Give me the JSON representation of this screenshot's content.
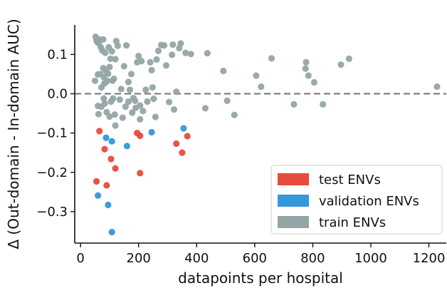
{
  "chart_data": {
    "type": "scatter",
    "xlabel": "datapoints per hospital",
    "ylabel": "Δ (Out-domain - In-domain AUC)",
    "xlim": [
      -20,
      1260
    ],
    "ylim": [
      -0.38,
      0.175
    ],
    "xticks": [
      0,
      200,
      400,
      600,
      800,
      1000,
      1200
    ],
    "xtick_labels": [
      "0",
      "200",
      "400",
      "600",
      "800",
      "1000",
      "1200"
    ],
    "yticks": [
      -0.3,
      -0.2,
      -0.1,
      0.0,
      0.1
    ],
    "ytick_labels": [
      "−0.3",
      "−0.2",
      "−0.1",
      "0.0",
      "0.1"
    ],
    "reference_line": {
      "y": 0.0,
      "style": "dashed",
      "color": "#7f7f7f"
    },
    "grid": false,
    "legend": {
      "placement": "bottom-right"
    },
    "series": [
      {
        "name": "test ENVs",
        "color": "#e74c3c",
        "points": [
          [
            55,
            -0.223
          ],
          [
            65,
            -0.095
          ],
          [
            83,
            -0.141
          ],
          [
            90,
            -0.233
          ],
          [
            105,
            -0.166
          ],
          [
            120,
            -0.19
          ],
          [
            195,
            -0.1
          ],
          [
            205,
            -0.107
          ],
          [
            205,
            -0.202
          ],
          [
            330,
            -0.127
          ],
          [
            350,
            -0.15
          ],
          [
            368,
            -0.108
          ]
        ]
      },
      {
        "name": "validation ENVs",
        "color": "#3498db",
        "points": [
          [
            60,
            -0.259
          ],
          [
            88,
            -0.112
          ],
          [
            95,
            -0.283
          ],
          [
            108,
            -0.121
          ],
          [
            108,
            -0.352
          ],
          [
            160,
            -0.133
          ],
          [
            245,
            -0.098
          ],
          [
            355,
            -0.088
          ]
        ]
      },
      {
        "name": "train ENVs",
        "color": "#95a5a6",
        "points": [
          [
            50,
            0.033
          ],
          [
            52,
            0.145
          ],
          [
            55,
            0.136
          ],
          [
            58,
            0.131
          ],
          [
            60,
            0.049
          ],
          [
            60,
            -0.031
          ],
          [
            62,
            -0.052
          ],
          [
            63,
            0.128
          ],
          [
            65,
            0.138
          ],
          [
            67,
            0.05
          ],
          [
            70,
            0.118
          ],
          [
            72,
            0.016
          ],
          [
            72,
            -0.033
          ],
          [
            75,
            0.11
          ],
          [
            78,
            0.065
          ],
          [
            78,
            0.138
          ],
          [
            80,
            0.042
          ],
          [
            80,
            -0.012
          ],
          [
            82,
            0.026
          ],
          [
            83,
            -0.025
          ],
          [
            85,
            0.104
          ],
          [
            87,
            0.058
          ],
          [
            88,
            0.03
          ],
          [
            90,
            -0.047
          ],
          [
            92,
            0.033
          ],
          [
            95,
            0.051
          ],
          [
            97,
            0.118
          ],
          [
            100,
            0.068
          ],
          [
            100,
            -0.058
          ],
          [
            103,
            0.089
          ],
          [
            105,
            -0.02
          ],
          [
            108,
            0.108
          ],
          [
            110,
            0.033
          ],
          [
            112,
            -0.012
          ],
          [
            115,
            0.038
          ],
          [
            118,
            -0.053
          ],
          [
            120,
            0.088
          ],
          [
            120,
            -0.081
          ],
          [
            123,
            0.134
          ],
          [
            128,
            0.122
          ],
          [
            135,
            -0.015
          ],
          [
            140,
            0.012
          ],
          [
            145,
            -0.061
          ],
          [
            150,
            0.07
          ],
          [
            155,
            -0.033
          ],
          [
            158,
            0.123
          ],
          [
            165,
            -0.02
          ],
          [
            165,
            0.03
          ],
          [
            170,
            0.01
          ],
          [
            175,
            0.05
          ],
          [
            178,
            -0.048
          ],
          [
            182,
            -0.011
          ],
          [
            188,
            -0.018
          ],
          [
            190,
            -0.036
          ],
          [
            195,
            0.08
          ],
          [
            200,
            0.096
          ],
          [
            205,
            -0.03
          ],
          [
            205,
            -0.065
          ],
          [
            210,
            0.083
          ],
          [
            215,
            -0.044
          ],
          [
            225,
            0.01
          ],
          [
            230,
            -0.02
          ],
          [
            240,
            0.08
          ],
          [
            245,
            0.06
          ],
          [
            248,
            0.016
          ],
          [
            252,
            -0.013
          ],
          [
            258,
            -0.059
          ],
          [
            262,
            0.087
          ],
          [
            268,
            0.109
          ],
          [
            278,
            0.124
          ],
          [
            288,
            0.123
          ],
          [
            295,
            0.072
          ],
          [
            305,
            -0.021
          ],
          [
            315,
            0.099
          ],
          [
            318,
            0.125
          ],
          [
            322,
            -0.04
          ],
          [
            330,
            0.005
          ],
          [
            340,
            0.116
          ],
          [
            345,
            0.128
          ],
          [
            362,
            0.104
          ],
          [
            380,
            0.101
          ],
          [
            430,
            -0.037
          ],
          [
            437,
            0.103
          ],
          [
            492,
            0.058
          ],
          [
            505,
            -0.018
          ],
          [
            530,
            -0.054
          ],
          [
            605,
            0.046
          ],
          [
            622,
            0.018
          ],
          [
            658,
            0.09
          ],
          [
            735,
            -0.027
          ],
          [
            775,
            0.064
          ],
          [
            777,
            0.08
          ],
          [
            785,
            0.046
          ],
          [
            805,
            0.029
          ],
          [
            835,
            -0.027
          ],
          [
            897,
            0.074
          ],
          [
            925,
            0.089
          ],
          [
            1228,
            0.018
          ]
        ]
      }
    ]
  }
}
